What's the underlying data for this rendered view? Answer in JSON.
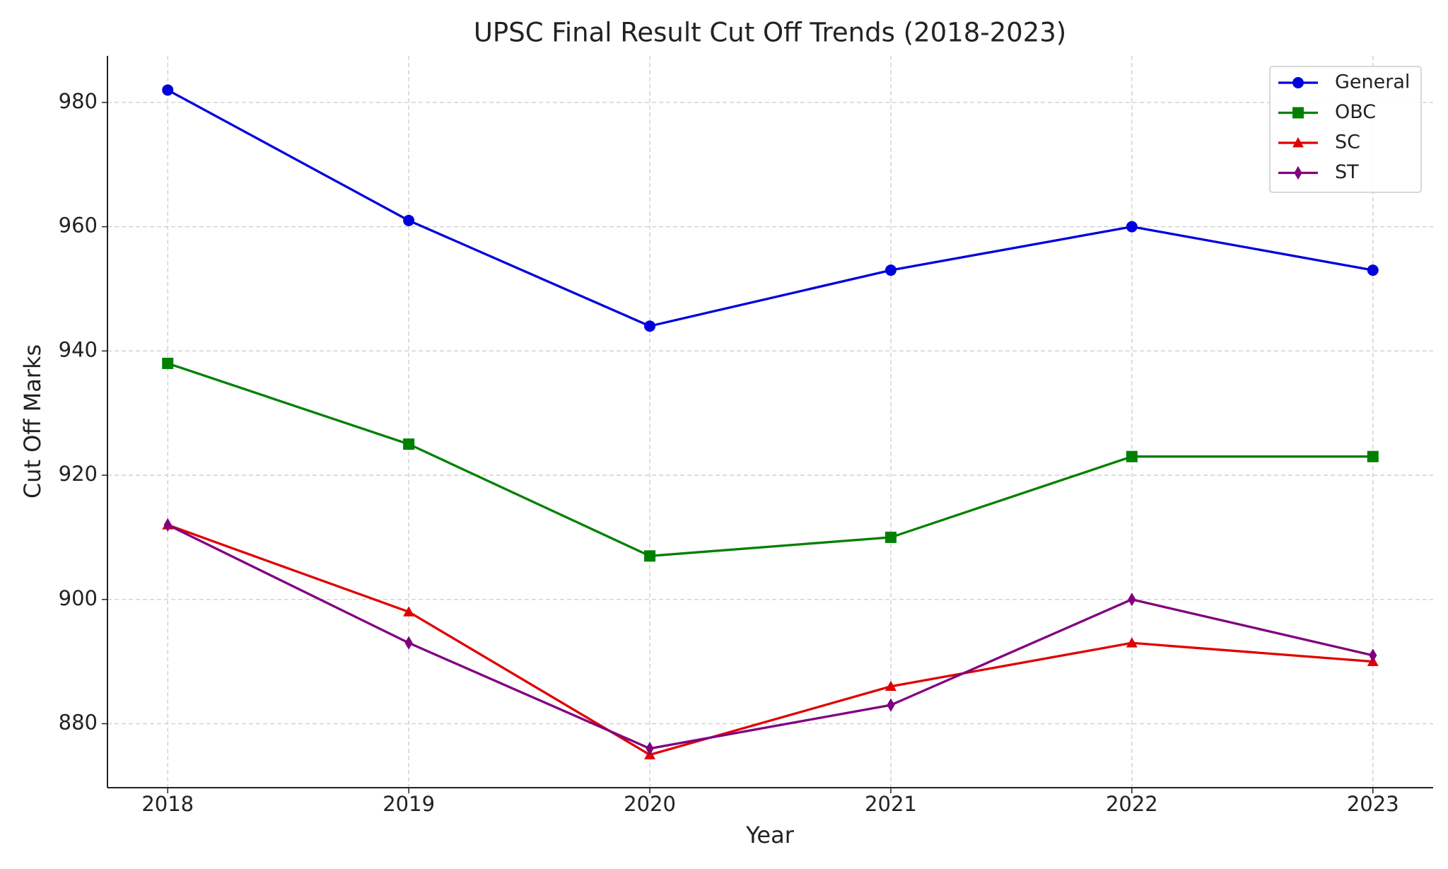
{
  "chart_data": {
    "type": "line",
    "title": "UPSC Final Result Cut Off Trends (2018-2023)",
    "x_label": "Year",
    "y_label": "Cut Off Marks",
    "x": [
      2018,
      2019,
      2020,
      2021,
      2022,
      2023
    ],
    "series": [
      {
        "name": "General",
        "color": "#0000dd",
        "marker": "circle",
        "values": [
          982,
          961,
          944,
          953,
          960,
          953
        ]
      },
      {
        "name": "OBC",
        "color": "#008000",
        "marker": "square",
        "values": [
          938,
          925,
          907,
          910,
          923,
          923
        ]
      },
      {
        "name": "SC",
        "color": "#e00000",
        "marker": "triangle",
        "values": [
          912,
          898,
          875,
          886,
          893,
          890
        ]
      },
      {
        "name": "ST",
        "color": "#800080",
        "marker": "diamond",
        "values": [
          912,
          893,
          876,
          883,
          900,
          891
        ]
      }
    ],
    "xlim": [
      2017.75,
      2023.25
    ],
    "xticks": [
      2018,
      2019,
      2020,
      2021,
      2022,
      2023
    ],
    "ylim": [
      869.7,
      987.5
    ],
    "yticks": [
      880,
      900,
      920,
      940,
      960,
      980
    ],
    "grid": true,
    "legend": "upper right"
  }
}
